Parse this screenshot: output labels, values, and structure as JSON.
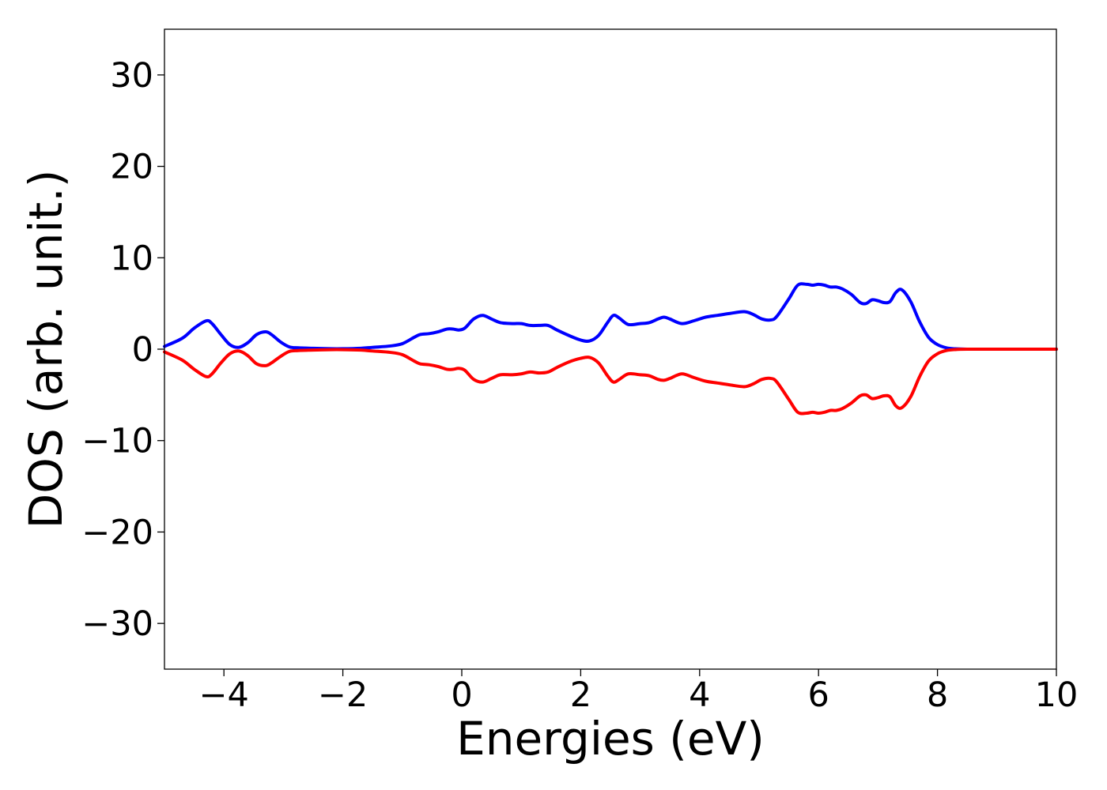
{
  "chart_data": {
    "type": "line",
    "xlabel": "Energies (eV)",
    "ylabel": "DOS (arb. unit.)",
    "xlim": [
      -5,
      10
    ],
    "ylim": [
      -35,
      35
    ],
    "xticks": [
      -4,
      -2,
      0,
      2,
      4,
      6,
      8,
      10
    ],
    "yticks": [
      -30,
      -20,
      -10,
      0,
      10,
      20,
      30
    ],
    "xtick_labels": [
      "−4",
      "−2",
      "0",
      "2",
      "4",
      "6",
      "8",
      "10"
    ],
    "ytick_labels": [
      "−30",
      "−20",
      "−10",
      "0",
      "10",
      "20",
      "30"
    ],
    "grid": false,
    "series": [
      {
        "color": "#0000ff",
        "x": [
          -5.0,
          -4.7,
          -4.5,
          -4.3,
          -4.2,
          -4.05,
          -3.9,
          -3.75,
          -3.6,
          -3.45,
          -3.3,
          -3.2,
          -3.05,
          -2.9,
          -2.75,
          -2.5,
          -2.2,
          -2.0,
          -1.7,
          -1.5,
          -1.2,
          -1.0,
          -0.8,
          -0.7,
          -0.55,
          -0.4,
          -0.25,
          -0.15,
          -0.05,
          0.05,
          0.2,
          0.35,
          0.5,
          0.65,
          0.85,
          1.0,
          1.15,
          1.3,
          1.45,
          1.6,
          1.8,
          2.0,
          2.15,
          2.3,
          2.45,
          2.55,
          2.65,
          2.8,
          3.0,
          3.15,
          3.3,
          3.4,
          3.5,
          3.7,
          3.9,
          4.1,
          4.3,
          4.5,
          4.75,
          4.9,
          5.05,
          5.2,
          5.3,
          5.5,
          5.65,
          5.8,
          5.9,
          6.0,
          6.1,
          6.2,
          6.3,
          6.4,
          6.55,
          6.7,
          6.8,
          6.9,
          7.0,
          7.1,
          7.2,
          7.3,
          7.4,
          7.55,
          7.7,
          7.85,
          8.0,
          8.15,
          8.3,
          8.5,
          9.0,
          10.0
        ],
        "y": [
          0.3,
          1.2,
          2.3,
          3.1,
          2.8,
          1.6,
          0.5,
          0.2,
          0.7,
          1.6,
          1.9,
          1.6,
          0.8,
          0.25,
          0.15,
          0.1,
          0.05,
          0.05,
          0.1,
          0.2,
          0.35,
          0.6,
          1.3,
          1.6,
          1.7,
          1.9,
          2.2,
          2.2,
          2.1,
          2.3,
          3.3,
          3.7,
          3.3,
          2.9,
          2.8,
          2.8,
          2.6,
          2.6,
          2.6,
          2.1,
          1.5,
          1.0,
          0.9,
          1.5,
          2.9,
          3.7,
          3.4,
          2.7,
          2.8,
          2.9,
          3.3,
          3.5,
          3.3,
          2.8,
          3.1,
          3.5,
          3.7,
          3.9,
          4.1,
          3.8,
          3.3,
          3.2,
          3.6,
          5.5,
          7.0,
          7.1,
          7.0,
          7.1,
          7.0,
          6.8,
          6.8,
          6.6,
          6.0,
          5.1,
          5.0,
          5.4,
          5.3,
          5.1,
          5.2,
          6.2,
          6.5,
          5.2,
          3.0,
          1.3,
          0.5,
          0.15,
          0.04,
          0.0,
          0.0,
          0.0
        ]
      },
      {
        "color": "#ff0000",
        "x": [
          -5.0,
          -4.7,
          -4.5,
          -4.3,
          -4.2,
          -4.05,
          -3.9,
          -3.75,
          -3.6,
          -3.45,
          -3.3,
          -3.2,
          -3.05,
          -2.9,
          -2.75,
          -2.5,
          -2.2,
          -2.0,
          -1.7,
          -1.5,
          -1.2,
          -1.0,
          -0.8,
          -0.7,
          -0.55,
          -0.4,
          -0.25,
          -0.15,
          -0.05,
          0.05,
          0.2,
          0.35,
          0.5,
          0.65,
          0.85,
          1.0,
          1.15,
          1.3,
          1.45,
          1.6,
          1.8,
          2.0,
          2.15,
          2.3,
          2.45,
          2.55,
          2.65,
          2.8,
          3.0,
          3.15,
          3.3,
          3.4,
          3.5,
          3.7,
          3.9,
          4.1,
          4.3,
          4.5,
          4.75,
          4.9,
          5.05,
          5.2,
          5.3,
          5.5,
          5.65,
          5.8,
          5.9,
          6.0,
          6.1,
          6.2,
          6.3,
          6.4,
          6.55,
          6.7,
          6.8,
          6.9,
          7.0,
          7.1,
          7.2,
          7.3,
          7.4,
          7.55,
          7.7,
          7.85,
          8.0,
          8.15,
          8.3,
          8.5,
          9.0,
          10.0
        ],
        "y": [
          -0.3,
          -1.2,
          -2.2,
          -3.0,
          -2.7,
          -1.5,
          -0.5,
          -0.2,
          -0.7,
          -1.6,
          -1.8,
          -1.5,
          -0.8,
          -0.25,
          -0.15,
          -0.1,
          -0.05,
          -0.05,
          -0.1,
          -0.2,
          -0.35,
          -0.6,
          -1.3,
          -1.6,
          -1.7,
          -1.9,
          -2.2,
          -2.2,
          -2.1,
          -2.3,
          -3.3,
          -3.6,
          -3.2,
          -2.8,
          -2.8,
          -2.7,
          -2.5,
          -2.6,
          -2.5,
          -2.0,
          -1.4,
          -1.0,
          -0.9,
          -1.5,
          -2.9,
          -3.6,
          -3.3,
          -2.7,
          -2.8,
          -2.9,
          -3.3,
          -3.4,
          -3.2,
          -2.7,
          -3.1,
          -3.5,
          -3.7,
          -3.9,
          -4.1,
          -3.8,
          -3.3,
          -3.2,
          -3.6,
          -5.5,
          -6.9,
          -7.0,
          -6.9,
          -7.0,
          -6.9,
          -6.7,
          -6.7,
          -6.5,
          -5.9,
          -5.1,
          -5.0,
          -5.4,
          -5.3,
          -5.1,
          -5.2,
          -6.2,
          -6.4,
          -5.2,
          -3.0,
          -1.3,
          -0.5,
          -0.15,
          -0.04,
          0.0,
          0.0,
          0.0
        ]
      }
    ]
  }
}
